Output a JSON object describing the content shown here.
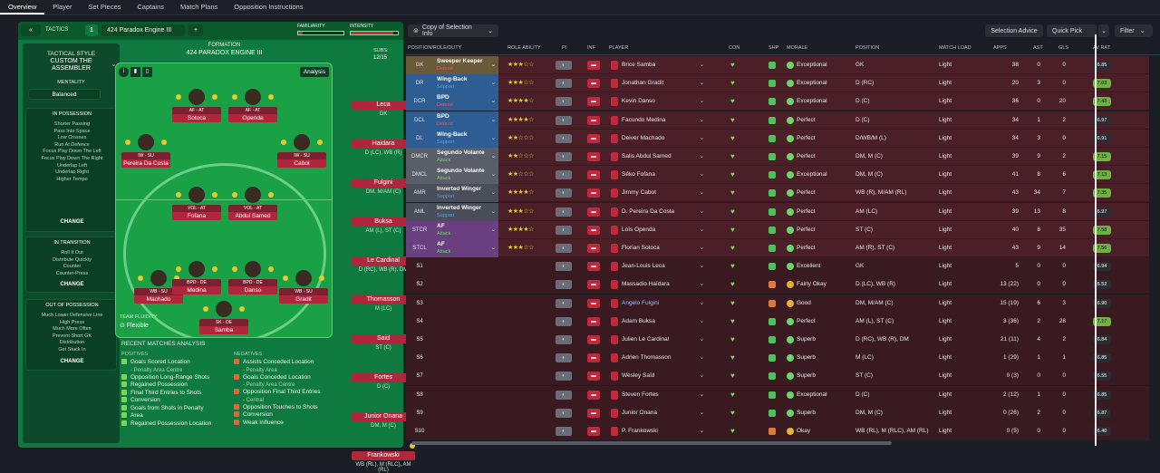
{
  "nav": [
    "Overview",
    "Player",
    "Set Pieces",
    "Captains",
    "Match Plans",
    "Opposition Instructions"
  ],
  "tactics_bar": {
    "back": "«",
    "tactics_label": "TACTICS",
    "slot": "1",
    "tactic_name": "424 Paradox  Engine  III",
    "add": "+",
    "familiarity": "FAMILIARITY",
    "intensity": "INTENSITY"
  },
  "style": {
    "title": "TACTICAL STYLE",
    "name1": "CUSTOM THE",
    "name2": "ASSEMBLER",
    "mentality_label": "MENTALITY",
    "mentality": "Balanced",
    "in_possession": {
      "title": "IN POSSESSION",
      "items": [
        "Shorter Passing",
        "Pass Into Space",
        "Low Crosses",
        "Run At Defence",
        "Focus Play Down The Left",
        "Focus Play Down The Right",
        "Underlap Left",
        "Underlap Right",
        "Higher Tempo"
      ]
    },
    "in_transition": {
      "title": "IN TRANSITION",
      "items": [
        "Roll It Out",
        "Distribute Quickly",
        "Counter",
        "Counter-Press"
      ]
    },
    "out_possession": {
      "title": "OUT OF POSSESSION",
      "items": [
        "Much Lower Defensive Line",
        "High Press",
        "Much More Often",
        "Prevent Short GK",
        "Distribution",
        "Get Stuck In"
      ]
    },
    "change": "CHANGE"
  },
  "formation": {
    "label": "FORMATION",
    "name": "424 PARADOX  ENGINE  III",
    "analysis": "Analysis",
    "team_fluidity": "TEAM FLUIDITY",
    "fluidity": "Flexible",
    "players": [
      {
        "role": "AF - AT",
        "name": "Sotoca"
      },
      {
        "role": "AF - AT",
        "name": "Openda"
      },
      {
        "role": "IW - SU",
        "name": "Pereira Da Costa"
      },
      {
        "role": "IW - SU",
        "name": "Cabot"
      },
      {
        "role": "VOL - AT",
        "name": "Fofana"
      },
      {
        "role": "VOL - AT",
        "name": "Abdul Samed"
      },
      {
        "role": "WB - SU",
        "name": "Machado"
      },
      {
        "role": "BPD - DE",
        "name": "Medina"
      },
      {
        "role": "BPD - DE",
        "name": "Danso"
      },
      {
        "role": "WB - SU",
        "name": "Gradit"
      },
      {
        "role": "SK - DE",
        "name": "Samba"
      }
    ]
  },
  "subs": {
    "label": "SUBS:",
    "count": "12/15",
    "players": [
      {
        "name": "Leca",
        "pos": "GK"
      },
      {
        "name": "Haidara",
        "pos": "D (LC), WB (R)"
      },
      {
        "name": "Fulgini",
        "pos": "DM, M/AM (C)"
      },
      {
        "name": "Buksa",
        "pos": "AM (L), ST (C)"
      },
      {
        "name": "Le Cardinal",
        "pos": "D (RC), WB (R), DM"
      },
      {
        "name": "Thomasson",
        "pos": "M (LC)"
      },
      {
        "name": "Said",
        "pos": "ST (C)"
      },
      {
        "name": "Fortes",
        "pos": "D (C)"
      },
      {
        "name": "Junior Onana",
        "pos": "DM, M (C)"
      },
      {
        "name": "Frankowski",
        "pos": "WB (RL), M (RLC), AM (RL)"
      }
    ]
  },
  "analysis": {
    "title": "RECENT MATCHES ANALYSIS",
    "positives_label": "POSITIVES",
    "negatives_label": "NEGATIVES",
    "positives": [
      {
        "t": "Goals Scored Location",
        "s": "- Penalty Area Centre"
      },
      {
        "t": "Opposition Long-Range Shots",
        "s": ""
      },
      {
        "t": "Regained Possession",
        "s": ""
      },
      {
        "t": "Final Third Entries to Shots",
        "s": ""
      },
      {
        "t": "Conversion",
        "s": ""
      },
      {
        "t": "Goals from Shots in Penalty",
        "s": ""
      },
      {
        "t": "Area",
        "s": ""
      },
      {
        "t": "Regained Possession Location",
        "s": ""
      }
    ],
    "negatives": [
      {
        "t": "Assists Conceded Location",
        "s": "- Penalty Area"
      },
      {
        "t": "Goals Conceded Location",
        "s": "- Penalty Area Centre"
      },
      {
        "t": "Opposition Final Third Entries",
        "s": "- Central"
      },
      {
        "t": "Opposition Touches to Shots",
        "s": ""
      },
      {
        "t": "Conversion",
        "s": ""
      },
      {
        "t": "Weak Influence",
        "s": ""
      }
    ]
  },
  "right_bar": {
    "view": "Copy of Selection Info",
    "selection_advice": "Selection Advice",
    "quick_pick": "Quick Pick",
    "filter": "Filter"
  },
  "columns": [
    "POSITION/ROLE/DUTY",
    "ROLE ABILITY",
    "PI",
    "INF",
    "PLAYER",
    "CON",
    "SHP",
    "MORALE",
    "POSITION",
    "MATCH LOAD",
    "APPS",
    "AST",
    "GLS",
    "AV RAT"
  ],
  "rows": [
    {
      "pos": "GK",
      "role": "Sweeper Keeper",
      "duty": "Defend",
      "stars": "★★★☆☆",
      "player": "Brice Samba",
      "morale": "Exceptional",
      "position": "GK",
      "load": "Light",
      "apps": "38",
      "ast": "0",
      "gls": "0",
      "rat": "6.85",
      "hi": false,
      "band": "gk"
    },
    {
      "pos": "DR",
      "role": "Wing-Back",
      "duty": "Support",
      "stars": "★★★☆☆",
      "player": "Jonathan Gradit",
      "morale": "Exceptional",
      "position": "D (RC)",
      "load": "Light",
      "apps": "20",
      "ast": "3",
      "gls": "0",
      "rat": "7.03",
      "hi": true,
      "band": "def"
    },
    {
      "pos": "DCR",
      "role": "BPD",
      "duty": "Defend",
      "stars": "★★★★☆",
      "player": "Kevin Danso",
      "morale": "Exceptional",
      "position": "D (C)",
      "load": "Light",
      "apps": "36",
      "ast": "0",
      "gls": "20",
      "rat": "7.43",
      "hi": true,
      "band": "def"
    },
    {
      "pos": "DCL",
      "role": "BPD",
      "duty": "Defend",
      "stars": "★★★★☆",
      "player": "Facundo Medina",
      "morale": "Perfect",
      "position": "D (C)",
      "load": "Light",
      "apps": "34",
      "ast": "1",
      "gls": "2",
      "rat": "6.97",
      "hi": false,
      "band": "def"
    },
    {
      "pos": "DL",
      "role": "Wing-Back",
      "duty": "Support",
      "stars": "★★☆☆☆",
      "player": "Deiver Machado",
      "morale": "Perfect",
      "position": "D/WB/M (L)",
      "load": "Light",
      "apps": "34",
      "ast": "3",
      "gls": "0",
      "rat": "6.91",
      "hi": false,
      "band": "def"
    },
    {
      "pos": "DMCR",
      "role": "Segundo Volante",
      "duty": "Attack",
      "stars": "★★☆☆☆",
      "player": "Salis Abdul Samed",
      "morale": "Perfect",
      "position": "DM, M (C)",
      "load": "Light",
      "apps": "39",
      "ast": "9",
      "gls": "2",
      "rat": "7.15",
      "hi": true,
      "band": "dm"
    },
    {
      "pos": "DMCL",
      "role": "Segundo Volante",
      "duty": "Attack",
      "stars": "★★☆☆☆",
      "player": "Séko Fofana",
      "morale": "Exceptional",
      "position": "DM, M (C)",
      "load": "Light",
      "apps": "41",
      "ast": "8",
      "gls": "6",
      "rat": "7.13",
      "hi": true,
      "band": "dm"
    },
    {
      "pos": "AMR",
      "role": "Inverted Winger",
      "duty": "Support",
      "stars": "★★★★☆",
      "player": "Jimmy Cabot",
      "morale": "Perfect",
      "position": "WB (R), M/AM (RL)",
      "load": "Light",
      "apps": "43",
      "ast": "34",
      "gls": "7",
      "rat": "7.35",
      "hi": true,
      "band": "am"
    },
    {
      "pos": "AML",
      "role": "Inverted Winger",
      "duty": "Support",
      "stars": "★★★☆☆",
      "player": "D. Pereira Da Costa",
      "morale": "Perfect",
      "position": "AM (LC)",
      "load": "Light",
      "apps": "39",
      "ast": "13",
      "gls": "8",
      "rat": "6.97",
      "hi": false,
      "band": "am"
    },
    {
      "pos": "STCR",
      "role": "AF",
      "duty": "Attack",
      "stars": "★★★★☆",
      "player": "Loïs Openda",
      "morale": "Perfect",
      "position": "ST (C)",
      "load": "Light",
      "apps": "40",
      "ast": "8",
      "gls": "35",
      "rat": "7.58",
      "hi": true,
      "band": "st"
    },
    {
      "pos": "STCL",
      "role": "AF",
      "duty": "Attack",
      "stars": "★★★☆☆",
      "player": "Florian Sotoca",
      "morale": "Perfect",
      "position": "AM (R), ST (C)",
      "load": "Light",
      "apps": "43",
      "ast": "9",
      "gls": "14",
      "rat": "7.56",
      "hi": true,
      "band": "st"
    },
    {
      "pos": "S1",
      "role": "",
      "duty": "",
      "stars": "",
      "player": "Jean-Louis Leca",
      "morale": "Excellent",
      "position": "GK",
      "load": "Light",
      "apps": "5",
      "ast": "0",
      "gls": "0",
      "rat": "6.94",
      "hi": false,
      "band": "sub"
    },
    {
      "pos": "S2",
      "role": "",
      "duty": "",
      "stars": "",
      "player": "Massadio Haïdara",
      "morale": "Fairly Okay",
      "position": "D (LC), WB (R)",
      "load": "Light",
      "apps": "13 (22)",
      "ast": "0",
      "gls": "0",
      "rat": "6.52",
      "hi": false,
      "band": "sub"
    },
    {
      "pos": "S3",
      "role": "",
      "duty": "",
      "stars": "",
      "player": "Angelo Fulgini",
      "morale": "Good",
      "position": "DM, M/AM (C)",
      "load": "Light",
      "apps": "15 (19)",
      "ast": "6",
      "gls": "3",
      "rat": "6.90",
      "hi": false,
      "band": "sub"
    },
    {
      "pos": "S4",
      "role": "",
      "duty": "",
      "stars": "",
      "player": "Adam Buksa",
      "morale": "Perfect",
      "position": "AM (L), ST (C)",
      "load": "Light",
      "apps": "3 (36)",
      "ast": "2",
      "gls": "28",
      "rat": "7.17",
      "hi": true,
      "band": "sub"
    },
    {
      "pos": "S5",
      "role": "",
      "duty": "",
      "stars": "",
      "player": "Julien Le Cardinal",
      "morale": "Superb",
      "position": "D (RC), WB (R), DM",
      "load": "Light",
      "apps": "21 (11)",
      "ast": "4",
      "gls": "2",
      "rat": "6.84",
      "hi": false,
      "band": "sub"
    },
    {
      "pos": "S6",
      "role": "",
      "duty": "",
      "stars": "",
      "player": "Adrien Thomasson",
      "morale": "Superb",
      "position": "M (LC)",
      "load": "Light",
      "apps": "1 (29)",
      "ast": "1",
      "gls": "1",
      "rat": "6.85",
      "hi": false,
      "band": "sub"
    },
    {
      "pos": "S7",
      "role": "",
      "duty": "",
      "stars": "",
      "player": "Wesley Saïd",
      "morale": "Superb",
      "position": "ST (C)",
      "load": "Light",
      "apps": "0 (3)",
      "ast": "0",
      "gls": "0",
      "rat": "6.55",
      "hi": false,
      "band": "sub"
    },
    {
      "pos": "S8",
      "role": "",
      "duty": "",
      "stars": "",
      "player": "Steven Fortes",
      "morale": "Exceptional",
      "position": "D (C)",
      "load": "Light",
      "apps": "2 (12)",
      "ast": "1",
      "gls": "0",
      "rat": "6.85",
      "hi": false,
      "band": "sub"
    },
    {
      "pos": "S9",
      "role": "",
      "duty": "",
      "stars": "",
      "player": "Junior Onana",
      "morale": "Superb",
      "position": "DM, M (C)",
      "load": "Light",
      "apps": "0 (26)",
      "ast": "2",
      "gls": "0",
      "rat": "6.87",
      "hi": false,
      "band": "sub"
    },
    {
      "pos": "S10",
      "role": "",
      "duty": "",
      "stars": "",
      "player": "P. Frankowski",
      "morale": "Okay",
      "position": "WB (RL), M (RLC), AM (RL)",
      "load": "Light",
      "apps": "0 (5)",
      "ast": "0",
      "gls": "0",
      "rat": "6.40",
      "hi": false,
      "band": "sub"
    }
  ],
  "colors": {
    "gk": "#6a5a3a",
    "def": "#2d5d92",
    "dm": "#5a5e68",
    "am": "#4a4e5a",
    "st": "#6a3f80",
    "sub": "#3a1a21",
    "accent": "#6db33f"
  }
}
